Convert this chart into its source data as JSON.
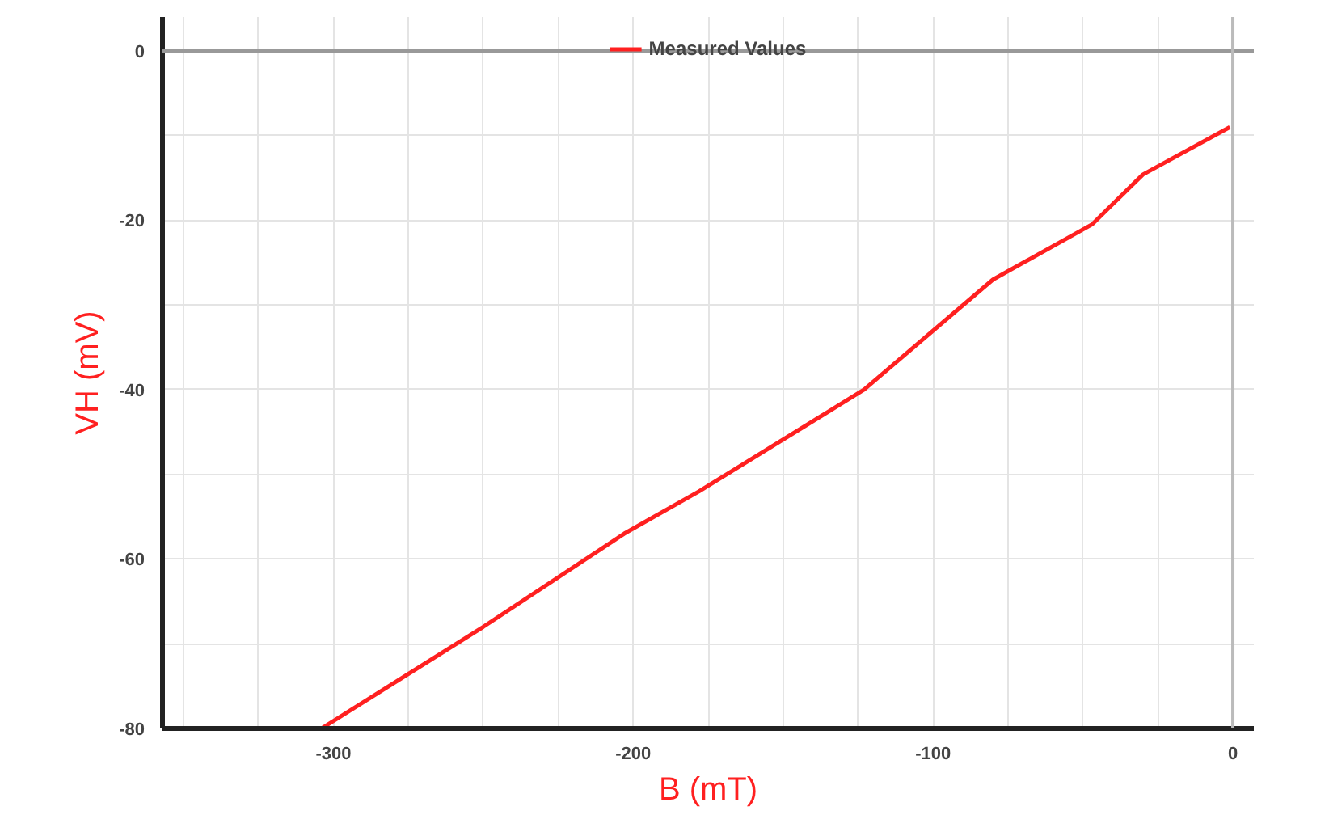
{
  "chart_data": {
    "type": "line",
    "xlabel": "B (mT)",
    "ylabel": "VH (mV)",
    "xlim": [
      -357,
      7
    ],
    "ylim": [
      -80,
      4
    ],
    "xticks": [
      {
        "value": -350,
        "label": null
      },
      {
        "value": -325,
        "label": null
      },
      -300,
      {
        "value": -275,
        "label": null
      },
      {
        "value": -250,
        "label": null
      },
      {
        "value": -225,
        "label": null
      },
      -200,
      {
        "value": -175,
        "label": null
      },
      {
        "value": -150,
        "label": null
      },
      {
        "value": -125,
        "label": null
      },
      -100,
      {
        "value": -75,
        "label": null
      },
      {
        "value": -50,
        "label": null
      },
      {
        "value": -25,
        "label": null
      },
      0
    ],
    "yticks": [
      -80,
      {
        "value": -70,
        "label": null
      },
      -60,
      {
        "value": -50,
        "label": null
      },
      -40,
      {
        "value": -30,
        "label": null
      },
      -20,
      {
        "value": -10,
        "label": null
      },
      0
    ],
    "grid": true,
    "legend": "top",
    "line_style": "solid",
    "ref_lines": [
      {
        "axis": "y",
        "value": 0,
        "color": "#999999"
      },
      {
        "axis": "x",
        "value": 0,
        "color": "#bbbbbb"
      }
    ],
    "series": [
      {
        "name": "Measured Values",
        "color": "#ff2020",
        "x": [
          -304,
          -250,
          -203,
          -178,
          -123,
          -80,
          -47,
          -30,
          -1
        ],
        "values": [
          -80,
          -68,
          -57,
          -52,
          -40,
          -27,
          -20.5,
          -14.6,
          -9
        ]
      }
    ]
  }
}
